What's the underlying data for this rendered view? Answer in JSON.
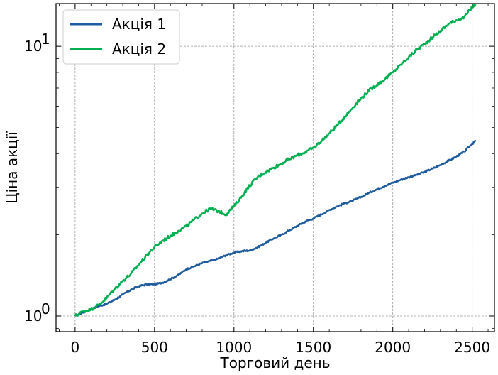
{
  "chart_data": {
    "type": "line",
    "title": "",
    "xlabel": "Торговий день",
    "ylabel": "Ціна акції",
    "yscale": "log",
    "xlim": [
      -120,
      2640
    ],
    "ylim": [
      0.875,
      14.4
    ],
    "grid": true,
    "legend_position": "top-left",
    "x_ticks": [
      {
        "value": 0,
        "label": "0"
      },
      {
        "value": 500,
        "label": "500"
      },
      {
        "value": 1000,
        "label": "1000"
      },
      {
        "value": 1500,
        "label": "1500"
      },
      {
        "value": 2000,
        "label": "2000"
      },
      {
        "value": 2500,
        "label": "2500"
      }
    ],
    "y_ticks": [
      {
        "value": 1,
        "base": "10",
        "exp": "0"
      },
      {
        "value": 10,
        "base": "10",
        "exp": "1"
      }
    ],
    "series": [
      {
        "name": "Акція 1",
        "color": "#1f5c9e",
        "x": [
          0,
          50,
          100,
          150,
          200,
          250,
          300,
          350,
          400,
          450,
          500,
          550,
          600,
          650,
          700,
          750,
          800,
          850,
          900,
          950,
          1000,
          1050,
          1100,
          1150,
          1200,
          1250,
          1300,
          1350,
          1400,
          1450,
          1500,
          1550,
          1600,
          1650,
          1700,
          1750,
          1800,
          1850,
          1900,
          1950,
          2000,
          2050,
          2100,
          2150,
          2200,
          2250,
          2300,
          2350,
          2400,
          2450,
          2500,
          2520
        ],
        "values": [
          1.0,
          1.03,
          1.06,
          1.09,
          1.11,
          1.15,
          1.2,
          1.25,
          1.29,
          1.31,
          1.31,
          1.33,
          1.37,
          1.42,
          1.49,
          1.53,
          1.57,
          1.6,
          1.63,
          1.68,
          1.72,
          1.74,
          1.75,
          1.8,
          1.87,
          1.94,
          2.0,
          2.08,
          2.16,
          2.24,
          2.3,
          2.38,
          2.47,
          2.55,
          2.62,
          2.68,
          2.76,
          2.86,
          2.95,
          3.04,
          3.12,
          3.2,
          3.27,
          3.34,
          3.42,
          3.52,
          3.63,
          3.76,
          3.9,
          4.07,
          4.35,
          4.45
        ]
      },
      {
        "name": "Акція 2",
        "color": "#00b050",
        "x": [
          0,
          50,
          100,
          150,
          200,
          250,
          300,
          350,
          400,
          450,
          500,
          550,
          600,
          650,
          700,
          750,
          800,
          850,
          900,
          950,
          1000,
          1050,
          1100,
          1150,
          1200,
          1250,
          1300,
          1350,
          1400,
          1450,
          1500,
          1550,
          1600,
          1650,
          1700,
          1750,
          1800,
          1850,
          1900,
          1950,
          2000,
          2050,
          2100,
          2150,
          2200,
          2250,
          2300,
          2350,
          2400,
          2450,
          2500,
          2520
        ],
        "values": [
          1.0,
          1.04,
          1.06,
          1.1,
          1.17,
          1.26,
          1.35,
          1.43,
          1.55,
          1.68,
          1.8,
          1.9,
          1.98,
          2.07,
          2.15,
          2.28,
          2.4,
          2.5,
          2.45,
          2.38,
          2.55,
          2.78,
          3.05,
          3.28,
          3.42,
          3.55,
          3.68,
          3.82,
          3.95,
          4.05,
          4.2,
          4.45,
          4.75,
          5.1,
          5.5,
          5.95,
          6.4,
          6.85,
          7.2,
          7.55,
          8.0,
          8.55,
          9.1,
          9.7,
          10.2,
          10.8,
          11.4,
          12.1,
          12.5,
          12.8,
          14.0,
          14.3
        ]
      }
    ]
  }
}
